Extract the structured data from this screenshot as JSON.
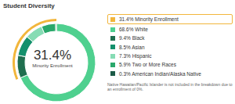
{
  "chart_data": {
    "type": "pie",
    "title": "Student Diversity",
    "highlight": {
      "name": "Minority Enrollment",
      "value": 31.4,
      "value_label": "31.4%",
      "color": "#f2b63c"
    },
    "categories": [
      "White",
      "Black",
      "Asian",
      "Hispanic",
      "Two or More Races",
      "American Indian/Alaska Native"
    ],
    "values": [
      68.6,
      9.4,
      8.5,
      7.3,
      5.9,
      0.3
    ],
    "value_labels": [
      "68.6%",
      "9.4%",
      "8.5%",
      "7.3%",
      "5.9%",
      "0.3%"
    ],
    "colors": [
      "#4fd08f",
      "#1f6e4e",
      "#14906c",
      "#86dcb4",
      "#2aa86b",
      "#1c5a47"
    ],
    "note": "Native Hawaiian/Pacific Islander is not included in the breakdown due to an enrollment of 0%."
  }
}
